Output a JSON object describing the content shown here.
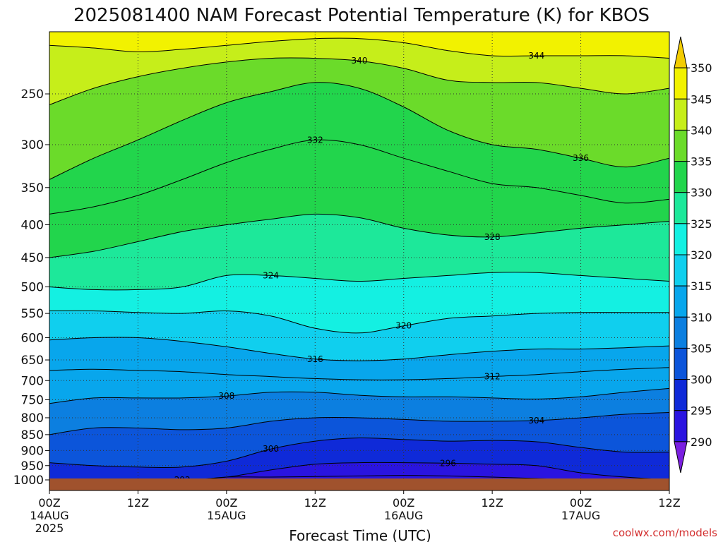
{
  "title": "2025081400 NAM Forecast Potential Temperature (K) for KBOS",
  "xlabel": "Forecast Time (UTC)",
  "watermark": "coolwx.com/models",
  "chart_data": {
    "type": "heatmap",
    "title": "2025081400 NAM Forecast Potential Temperature (K) for KBOS",
    "xlabel": "Forecast Time (UTC)",
    "ylabel": "",
    "x_range_hours": [
      0,
      84
    ],
    "y_range_hpa": [
      1000,
      200
    ],
    "y_scale": "log",
    "grid": true,
    "y_ticks": [
      250,
      300,
      350,
      400,
      450,
      500,
      550,
      600,
      650,
      700,
      750,
      800,
      850,
      900,
      950,
      1000
    ],
    "x_ticks": [
      {
        "hour": 0,
        "lines": [
          "00Z",
          "14AUG",
          "2025"
        ]
      },
      {
        "hour": 12,
        "lines": [
          "12Z"
        ]
      },
      {
        "hour": 24,
        "lines": [
          "00Z",
          "15AUG"
        ]
      },
      {
        "hour": 36,
        "lines": [
          "12Z"
        ]
      },
      {
        "hour": 48,
        "lines": [
          "00Z",
          "16AUG"
        ]
      },
      {
        "hour": 60,
        "lines": [
          "12Z"
        ]
      },
      {
        "hour": 72,
        "lines": [
          "00Z",
          "17AUG"
        ]
      },
      {
        "hour": 84,
        "lines": [
          "12Z"
        ]
      }
    ],
    "colorbar": {
      "levels": [
        290,
        295,
        300,
        305,
        310,
        315,
        320,
        325,
        330,
        335,
        340,
        345,
        350
      ],
      "colors": [
        "#7a1fe0",
        "#2a14e0",
        "#0f2ad8",
        "#0c55da",
        "#0c7fe0",
        "#08a6ec",
        "#10cfee",
        "#14f0e2",
        "#1de89a",
        "#22d54c",
        "#6bdb2a",
        "#c6ee1a",
        "#f2f200",
        "#f3cc00"
      ],
      "tick_labels": [
        "290",
        "295",
        "300",
        "305",
        "310",
        "315",
        "320",
        "325",
        "330",
        "335",
        "340",
        "345",
        "350"
      ]
    },
    "contour_interval_K": 4,
    "series": [
      {
        "name": "292",
        "hours": [
          8,
          12,
          16,
          18,
          20,
          24,
          30,
          36,
          42,
          48,
          54,
          60,
          66,
          72
        ],
        "pressure_hpa": [
          1000,
          1000,
          1000,
          1000,
          1000,
          990,
          990,
          988,
          986,
          984,
          986,
          990,
          995,
          1000
        ]
      },
      {
        "name": "296",
        "hours": [
          0,
          6,
          12,
          18,
          24,
          30,
          36,
          42,
          48,
          54,
          60,
          66,
          72,
          78,
          84
        ],
        "pressure_hpa": [
          1000,
          1000,
          1000,
          1000,
          990,
          965,
          945,
          940,
          940,
          942,
          945,
          950,
          975,
          990,
          1000
        ]
      },
      {
        "name": "300",
        "hours": [
          0,
          6,
          12,
          18,
          24,
          30,
          36,
          42,
          48,
          54,
          60,
          66,
          72,
          78,
          84
        ],
        "pressure_hpa": [
          940,
          950,
          955,
          955,
          935,
          895,
          870,
          860,
          865,
          870,
          868,
          872,
          890,
          905,
          905
        ]
      },
      {
        "name": "304",
        "hours": [
          0,
          6,
          12,
          18,
          24,
          30,
          36,
          42,
          48,
          54,
          60,
          66,
          72,
          78,
          84
        ],
        "pressure_hpa": [
          850,
          830,
          830,
          835,
          830,
          810,
          800,
          800,
          805,
          810,
          810,
          808,
          800,
          790,
          785
        ]
      },
      {
        "name": "308",
        "hours": [
          0,
          6,
          12,
          18,
          24,
          30,
          36,
          42,
          48,
          54,
          60,
          66,
          72,
          78,
          84
        ],
        "pressure_hpa": [
          760,
          745,
          745,
          745,
          740,
          730,
          730,
          738,
          742,
          742,
          745,
          748,
          742,
          730,
          720
        ]
      },
      {
        "name": "312",
        "hours": [
          0,
          6,
          12,
          18,
          24,
          30,
          36,
          42,
          48,
          54,
          60,
          66,
          72,
          78,
          84
        ],
        "pressure_hpa": [
          675,
          672,
          675,
          678,
          685,
          690,
          695,
          698,
          698,
          695,
          690,
          685,
          678,
          672,
          668
        ]
      },
      {
        "name": "316",
        "hours": [
          0,
          6,
          12,
          18,
          24,
          30,
          36,
          42,
          48,
          54,
          60,
          66,
          72,
          78,
          84
        ],
        "pressure_hpa": [
          605,
          600,
          600,
          608,
          620,
          635,
          648,
          652,
          648,
          638,
          630,
          625,
          625,
          622,
          618
        ]
      },
      {
        "name": "320",
        "hours": [
          0,
          6,
          12,
          18,
          24,
          30,
          36,
          42,
          48,
          54,
          60,
          66,
          72,
          78,
          84
        ],
        "pressure_hpa": [
          545,
          545,
          548,
          550,
          545,
          555,
          580,
          590,
          575,
          560,
          555,
          550,
          548,
          548,
          548
        ]
      },
      {
        "name": "324",
        "hours": [
          0,
          6,
          12,
          18,
          24,
          30,
          36,
          42,
          48,
          54,
          60,
          66,
          72,
          78,
          84
        ],
        "pressure_hpa": [
          500,
          505,
          505,
          500,
          480,
          480,
          485,
          490,
          485,
          480,
          475,
          475,
          480,
          485,
          490
        ]
      },
      {
        "name": "328",
        "hours": [
          0,
          6,
          12,
          18,
          24,
          30,
          36,
          42,
          48,
          54,
          60,
          66,
          72,
          78,
          84
        ],
        "pressure_hpa": [
          450,
          440,
          425,
          410,
          400,
          392,
          385,
          390,
          405,
          415,
          418,
          412,
          405,
          400,
          395
        ]
      },
      {
        "name": "332",
        "hours": [
          0,
          6,
          12,
          18,
          24,
          30,
          36,
          42,
          48,
          54,
          60,
          66,
          72,
          78,
          84
        ],
        "pressure_hpa": [
          385,
          375,
          360,
          340,
          320,
          305,
          295,
          300,
          315,
          330,
          345,
          350,
          360,
          370,
          365
        ]
      },
      {
        "name": "336",
        "hours": [
          0,
          6,
          12,
          18,
          24,
          30,
          36,
          42,
          48,
          54,
          60,
          66,
          72,
          78,
          84
        ],
        "pressure_hpa": [
          340,
          315,
          295,
          275,
          258,
          248,
          240,
          245,
          262,
          285,
          300,
          305,
          315,
          325,
          315
        ]
      },
      {
        "name": "340",
        "hours": [
          0,
          6,
          12,
          18,
          24,
          30,
          36,
          42,
          48,
          54,
          60,
          66,
          72,
          78,
          84
        ],
        "pressure_hpa": [
          260,
          245,
          235,
          228,
          223,
          220,
          220,
          222,
          228,
          238,
          240,
          240,
          245,
          250,
          245
        ]
      },
      {
        "name": "344",
        "hours": [
          0,
          6,
          12,
          18,
          24,
          30,
          36,
          42,
          48,
          54,
          60,
          66,
          72,
          78,
          84
        ],
        "pressure_hpa": [
          210,
          212,
          215,
          213,
          210,
          207,
          205,
          205,
          208,
          214,
          218,
          218,
          218,
          218,
          220
        ]
      }
    ]
  }
}
